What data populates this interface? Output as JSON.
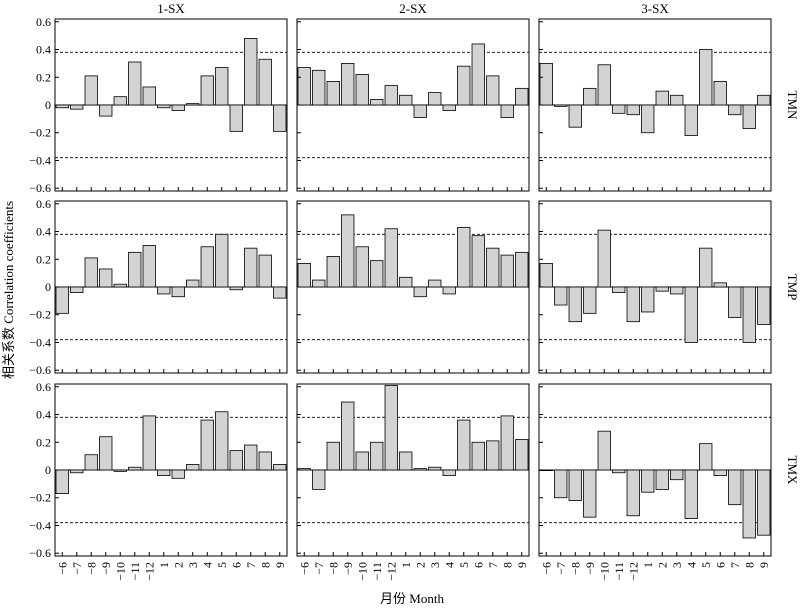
{
  "chart_data": {
    "type": "bar",
    "layout": "small-multiples",
    "column_titles": [
      "1-SX",
      "2-SX",
      "3-SX"
    ],
    "row_labels": [
      "TMN",
      "TMP",
      "TMX"
    ],
    "categories": [
      "−6",
      "−7",
      "−8",
      "−9",
      "−10",
      "−11",
      "−12",
      "1",
      "2",
      "3",
      "4",
      "5",
      "6",
      "7",
      "8",
      "9"
    ],
    "ylim": [
      -0.62,
      0.62
    ],
    "yticks": [
      "0.6",
      "0.4",
      "0.2",
      "0",
      "−0.2",
      "−0.4",
      "−0.6"
    ],
    "ytick_values": [
      0.6,
      0.4,
      0.2,
      0,
      -0.2,
      -0.4,
      -0.6
    ],
    "significance_lines": [
      0.38,
      -0.38
    ],
    "ylabel": "相关系数 Correlation coefficients",
    "xlabel": "月份 Month",
    "bar_color": "#d3d3d3",
    "panels": [
      [
        {
          "values": [
            -0.02,
            -0.03,
            0.21,
            -0.08,
            0.06,
            0.31,
            0.13,
            -0.02,
            -0.04,
            0.01,
            0.21,
            0.27,
            -0.19,
            0.48,
            0.33,
            -0.19
          ]
        },
        {
          "values": [
            0.27,
            0.25,
            0.17,
            0.3,
            0.22,
            0.04,
            0.14,
            0.07,
            -0.09,
            0.09,
            -0.04,
            0.28,
            0.44,
            0.21,
            -0.09,
            0.12
          ]
        },
        {
          "values": [
            0.3,
            -0.01,
            -0.16,
            0.12,
            0.29,
            -0.06,
            -0.07,
            -0.2,
            0.1,
            0.07,
            -0.22,
            0.4,
            0.17,
            -0.07,
            -0.17,
            0.07
          ]
        }
      ],
      [
        {
          "values": [
            -0.19,
            -0.04,
            0.21,
            0.13,
            0.02,
            0.25,
            0.3,
            -0.05,
            -0.07,
            0.05,
            0.29,
            0.38,
            -0.02,
            0.28,
            0.23,
            -0.08
          ]
        },
        {
          "values": [
            0.17,
            0.05,
            0.22,
            0.52,
            0.29,
            0.19,
            0.42,
            0.07,
            -0.07,
            0.05,
            -0.05,
            0.43,
            0.37,
            0.28,
            0.23,
            0.25
          ]
        },
        {
          "values": [
            0.17,
            -0.13,
            -0.25,
            -0.19,
            0.41,
            -0.04,
            -0.25,
            -0.18,
            -0.03,
            -0.05,
            -0.4,
            0.28,
            0.03,
            -0.22,
            -0.4,
            -0.27
          ]
        }
      ],
      [
        {
          "values": [
            -0.17,
            -0.02,
            0.11,
            0.24,
            -0.01,
            0.02,
            0.39,
            -0.04,
            -0.06,
            0.04,
            0.36,
            0.42,
            0.14,
            0.18,
            0.13,
            0.04
          ]
        },
        {
          "values": [
            0.01,
            -0.14,
            0.2,
            0.49,
            0.13,
            0.2,
            0.61,
            0.13,
            0.01,
            0.02,
            -0.04,
            0.36,
            0.2,
            0.21,
            0.39,
            0.22
          ]
        },
        {
          "values": [
            0.0,
            -0.2,
            -0.22,
            -0.34,
            0.28,
            -0.02,
            -0.33,
            -0.16,
            -0.14,
            -0.07,
            -0.35,
            0.19,
            -0.04,
            -0.25,
            -0.49,
            -0.47
          ]
        }
      ]
    ]
  }
}
